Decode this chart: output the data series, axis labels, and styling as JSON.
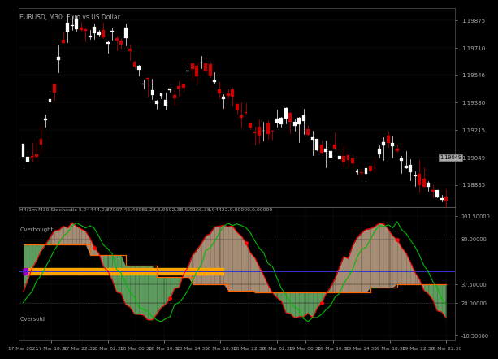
{
  "title_upper": "EURUSD, M30  Euro vs US Dollar",
  "title_lower": "H4(1m M30 Stochastic 5,94444,9,87007,45,43081,28,6,9502,38,6,9106,38,94422,0,00000,0,00000",
  "bg_color": "#000000",
  "panel_bg": "#000000",
  "upper_price_labels": [
    "1.19875",
    "1.19710",
    "1.19546",
    "1.19380",
    "1.19215",
    "1.19049",
    "1.18885"
  ],
  "upper_price_values": [
    1.19875,
    1.1971,
    1.19546,
    1.1938,
    1.19215,
    1.19049,
    1.18885
  ],
  "current_price": 1.19049,
  "current_price_label": "1.19049",
  "lower_yticks": [
    101.5,
    80.0,
    37.5,
    20.0,
    -10.5
  ],
  "lower_ytick_labels": [
    "101.50000",
    "80.00000",
    "37.50000",
    "20.00000",
    "-10.50000"
  ],
  "overbought_level": 80.0,
  "oversold_level": 20.0,
  "overbought_label": "Overbought",
  "oversold_label": "Oversold",
  "date_labels": [
    "17 Mar 2021",
    "17 Mar 18:30",
    "17 Mar 22:30",
    "18 Mar 02:30",
    "18 Mar 06:30",
    "18 Mar 10:30",
    "18 Mar 14:30",
    "18 Mar 18:30",
    "18 Mar 22:30",
    "19 Mar 02:30",
    "19 Mar 06:30",
    "19 Mar 10:30",
    "19 Mar 14:30",
    "19 Mar 18:30",
    "19 Mar 22:30",
    "19 Mar 22:30"
  ],
  "candle_bull": "#ffffff",
  "candle_bear": "#cc0000",
  "line1_color": "#ff0000",
  "line2_color": "#00bb00",
  "step_color": "#ff6600",
  "fill_green": "#90ee90",
  "fill_peach": "#ffd9b3",
  "dot_color": "#ff0000",
  "purple_color": "#9900cc",
  "orange_color": "#ffa500",
  "blue_color": "#3333cc",
  "sep_color": "#777777",
  "grid_color": "#1a1a1a",
  "text_color": "#aaaaaa",
  "axis_color": "#555555"
}
